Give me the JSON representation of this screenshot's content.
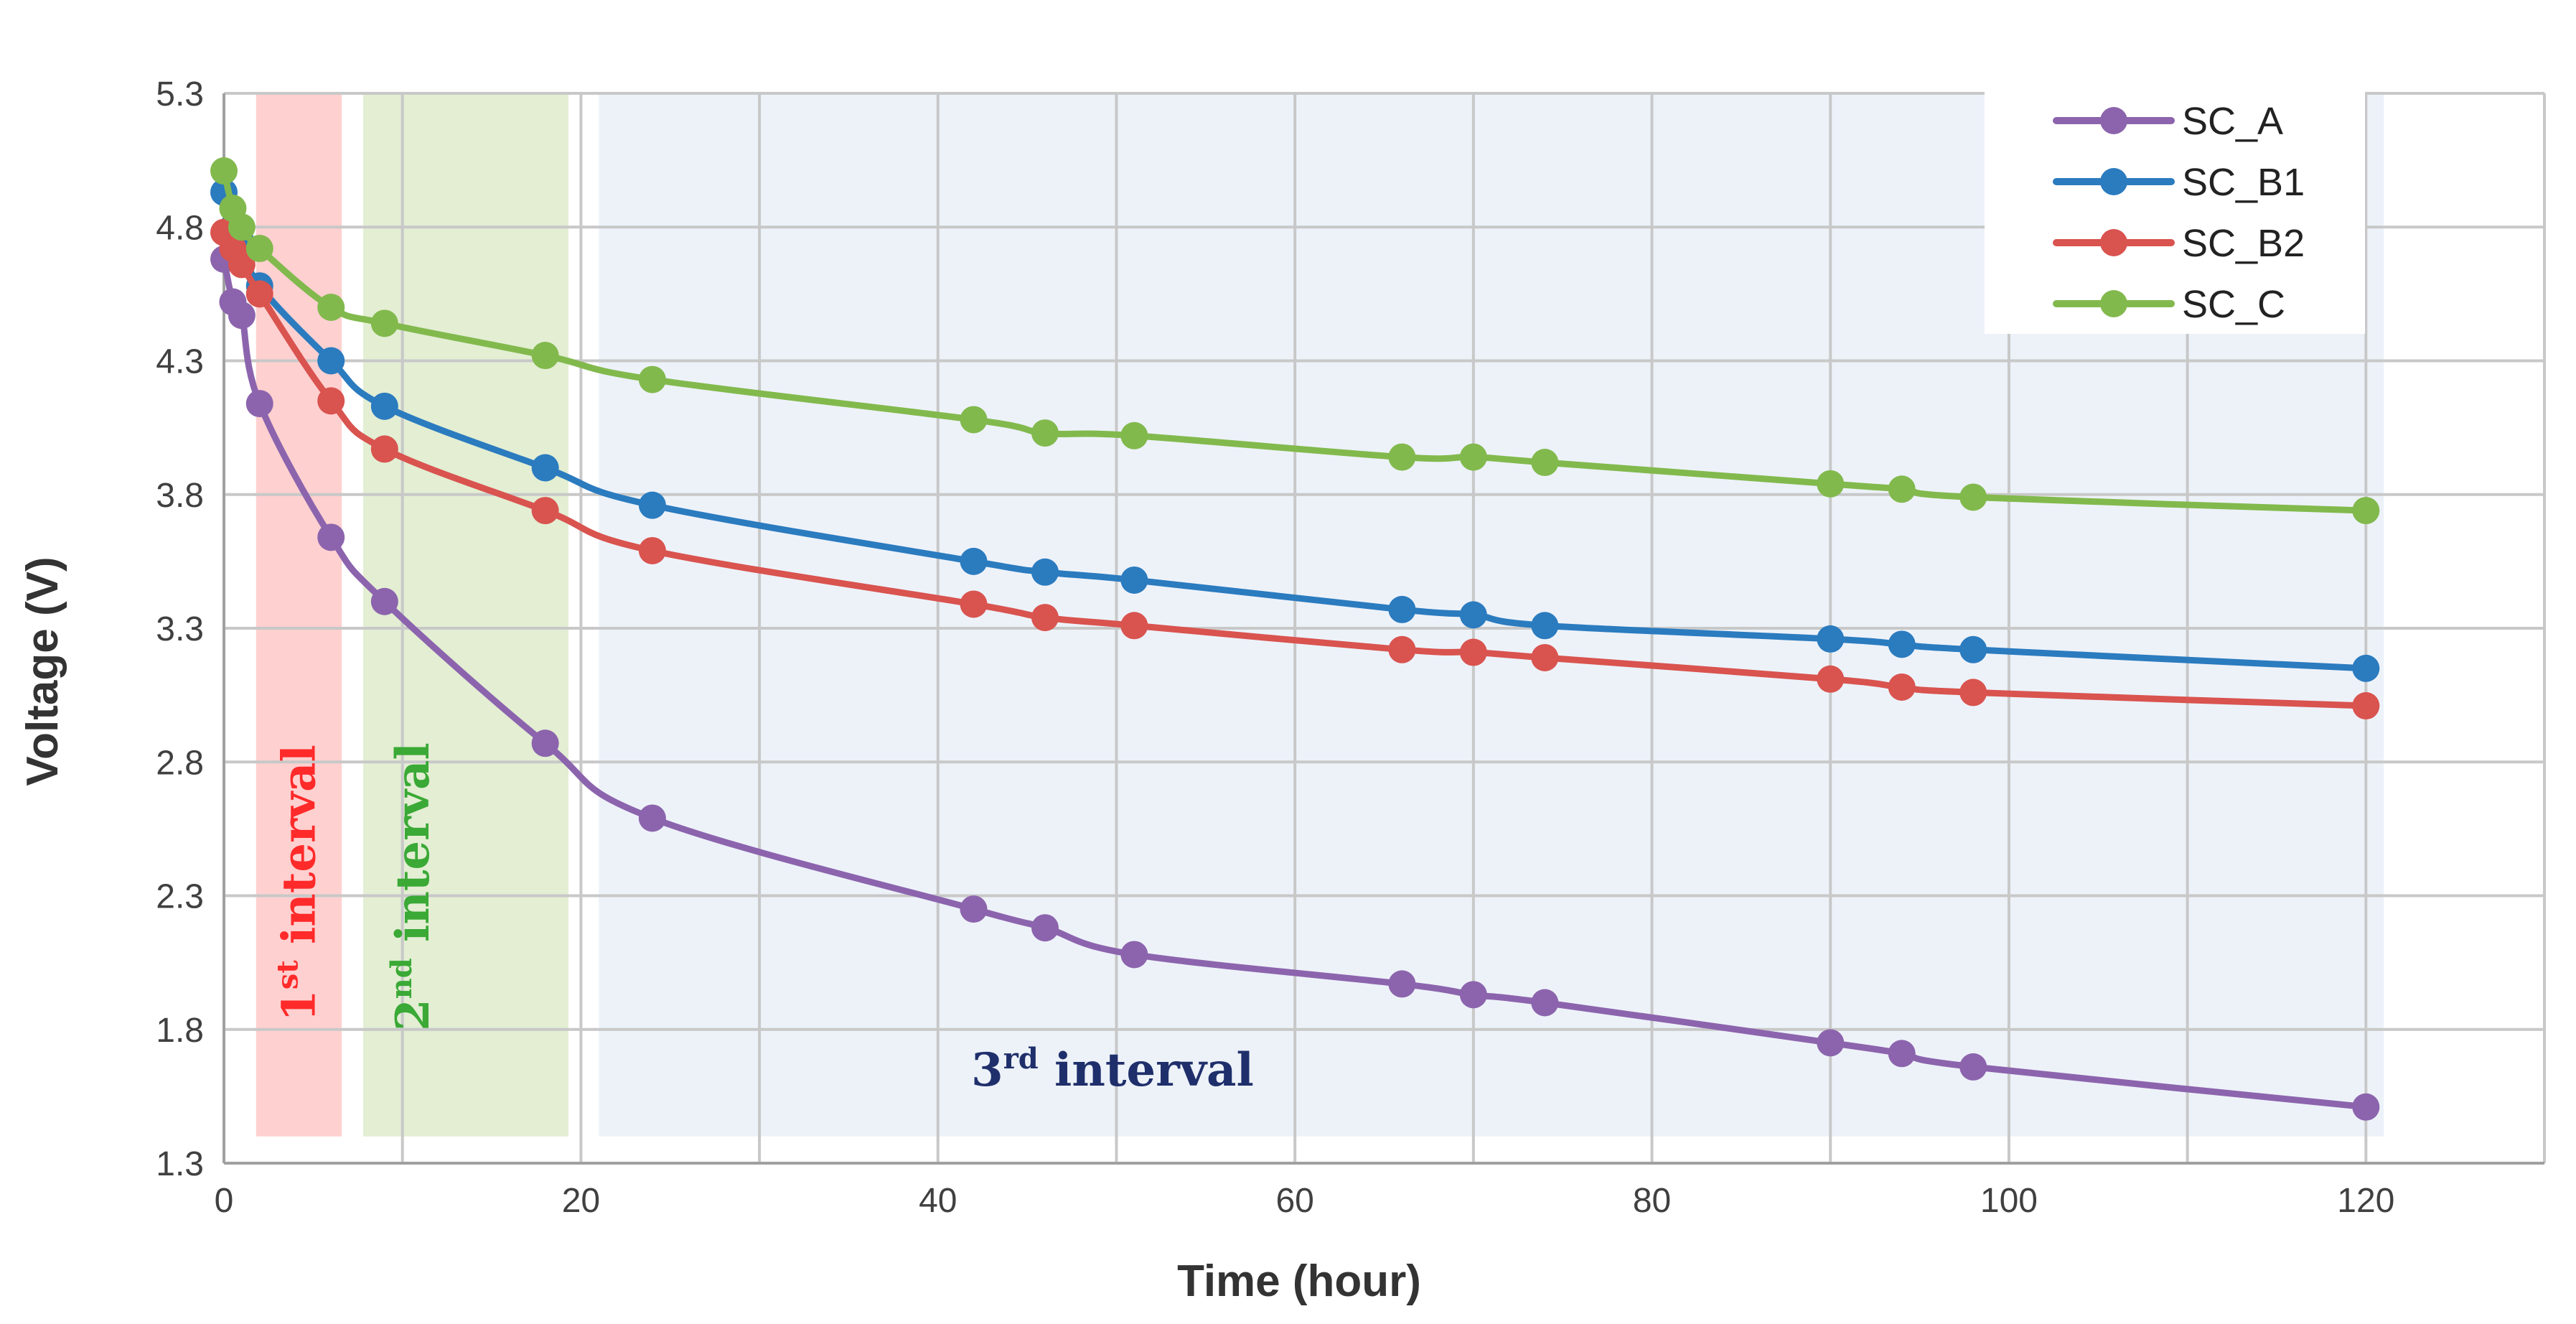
{
  "chart_data": {
    "type": "line",
    "title": "",
    "xlabel": "Time (hour)",
    "ylabel": "Voltage (V)",
    "xlim": [
      0,
      130
    ],
    "ylim": [
      1.3,
      5.3
    ],
    "xticks": [
      0,
      20,
      40,
      60,
      80,
      100,
      120
    ],
    "xtick_labels": [
      "0",
      "20",
      "40",
      "60",
      "80",
      "100",
      "120"
    ],
    "yticks": [
      1.3,
      1.8,
      2.3,
      2.8,
      3.3,
      3.8,
      4.3,
      4.8,
      5.3
    ],
    "ytick_labels": [
      "1.3",
      "1.8",
      "2.3",
      "2.8",
      "3.3",
      "3.8",
      "4.3",
      "4.8",
      "5.3"
    ],
    "grid": true,
    "legend_position": "top-right",
    "regions": [
      {
        "name": "interval-1",
        "label_main": "1",
        "label_sup": "st",
        "label_rest": " interval",
        "x_start": 1.8,
        "x_end": 6.6,
        "y_start": 1.4,
        "y_end": 5.3,
        "fill": "#ffd0d0",
        "text_color": "#ff2a2a"
      },
      {
        "name": "interval-2",
        "label_main": "2",
        "label_sup": "nd",
        "label_rest": " interval",
        "x_start": 7.8,
        "x_end": 19.3,
        "y_start": 1.4,
        "y_end": 5.3,
        "fill": "#e3eed3",
        "text_color": "#3aa935"
      },
      {
        "name": "interval-3",
        "label_main": "3",
        "label_sup": "rd",
        "label_rest": " interval",
        "x_start": 21.0,
        "x_end": 121.0,
        "y_start": 1.4,
        "y_end": 5.3,
        "fill": "#edf2f9",
        "text_color": "#1f2f6b"
      }
    ],
    "series": [
      {
        "name": "SC_A",
        "color": "#8c64ad",
        "x": [
          0,
          0.5,
          1,
          2,
          6,
          9,
          18,
          24,
          42,
          46,
          51,
          66,
          70,
          74,
          90,
          94,
          98,
          120
        ],
        "y": [
          4.68,
          4.52,
          4.47,
          4.14,
          3.64,
          3.4,
          2.87,
          2.59,
          2.25,
          2.18,
          2.08,
          1.97,
          1.93,
          1.9,
          1.75,
          1.71,
          1.66,
          1.51
        ]
      },
      {
        "name": "SC_B1",
        "color": "#2b7bbf",
        "x": [
          0,
          0.5,
          1,
          2,
          6,
          9,
          18,
          24,
          42,
          46,
          51,
          66,
          70,
          74,
          90,
          94,
          98,
          120
        ],
        "y": [
          4.93,
          4.8,
          4.74,
          4.58,
          4.3,
          4.13,
          3.9,
          3.76,
          3.55,
          3.51,
          3.48,
          3.37,
          3.35,
          3.31,
          3.26,
          3.24,
          3.22,
          3.15
        ]
      },
      {
        "name": "SC_B2",
        "color": "#d9534f",
        "x": [
          0,
          0.5,
          1,
          2,
          6,
          9,
          18,
          24,
          42,
          46,
          51,
          66,
          70,
          74,
          90,
          94,
          98,
          120
        ],
        "y": [
          4.78,
          4.72,
          4.66,
          4.55,
          4.15,
          3.97,
          3.74,
          3.59,
          3.39,
          3.34,
          3.31,
          3.22,
          3.21,
          3.19,
          3.11,
          3.08,
          3.06,
          3.01
        ]
      },
      {
        "name": "SC_C",
        "color": "#82b94d",
        "x": [
          0,
          0.5,
          1,
          2,
          6,
          9,
          18,
          24,
          42,
          46,
          51,
          66,
          70,
          74,
          90,
          94,
          98,
          120
        ],
        "y": [
          5.01,
          4.87,
          4.8,
          4.72,
          4.5,
          4.44,
          4.32,
          4.23,
          4.08,
          4.03,
          4.02,
          3.94,
          3.94,
          3.92,
          3.84,
          3.82,
          3.79,
          3.74
        ]
      }
    ]
  }
}
